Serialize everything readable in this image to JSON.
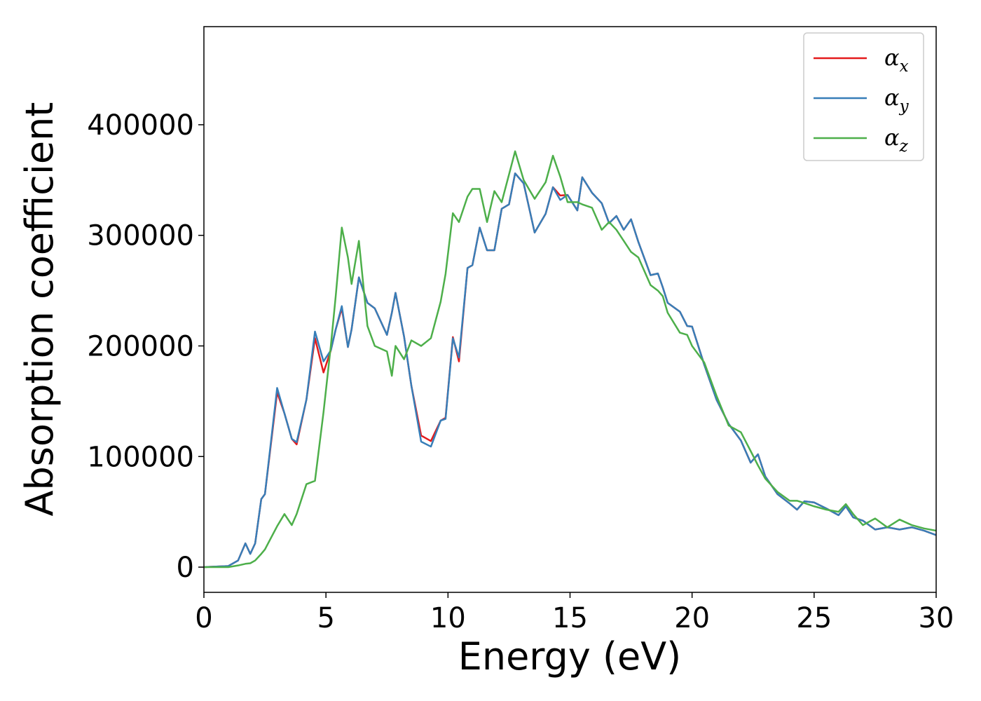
{
  "chart_data": {
    "type": "line",
    "xlabel": "Energy (eV)",
    "ylabel": "Absorption coefficient",
    "x": [
      0,
      1.0,
      1.4,
      1.7,
      1.9,
      2.1,
      2.35,
      2.5,
      3.0,
      3.3,
      3.6,
      3.8,
      4.2,
      4.55,
      4.9,
      5.2,
      5.4,
      5.65,
      5.9,
      6.05,
      6.35,
      6.7,
      7.0,
      7.5,
      7.7,
      7.85,
      8.2,
      8.5,
      8.9,
      9.3,
      9.7,
      9.9,
      10.2,
      10.45,
      10.8,
      11.0,
      11.3,
      11.6,
      11.9,
      12.2,
      12.5,
      12.75,
      13.1,
      13.55,
      14.0,
      14.3,
      14.6,
      14.9,
      15.3,
      15.5,
      15.9,
      16.3,
      16.6,
      16.9,
      17.2,
      17.5,
      17.8,
      18.3,
      18.6,
      18.8,
      19.0,
      19.5,
      19.8,
      20.0,
      20.5,
      21.0,
      21.5,
      22.0,
      22.4,
      22.7,
      23.0,
      23.5,
      24.0,
      24.3,
      24.6,
      25.0,
      25.5,
      26.0,
      26.3,
      26.6,
      27.0,
      27.5,
      28.0,
      28.5,
      29.0,
      29.5,
      30.0
    ],
    "series": [
      {
        "name": "α_x",
        "color": "#e41a1c",
        "values": [
          0,
          1000,
          6000,
          21500,
          12000,
          21500,
          61500,
          66000,
          158000,
          139000,
          116000,
          111000,
          151500,
          207000,
          176000,
          196000,
          215000,
          234000,
          199000,
          215000,
          262000,
          239000,
          234000,
          210000,
          230000,
          248000,
          208500,
          164000,
          119000,
          114000,
          132500,
          135000,
          208000,
          186000,
          270500,
          273000,
          307000,
          286500,
          286500,
          324000,
          328000,
          356000,
          347000,
          302500,
          319500,
          343500,
          336000,
          336500,
          322500,
          352500,
          338500,
          329000,
          311000,
          317500,
          305000,
          314500,
          294000,
          264000,
          265500,
          253000,
          239000,
          231000,
          218000,
          217500,
          183000,
          151500,
          129500,
          114500,
          94500,
          102000,
          82000,
          66000,
          57500,
          52000,
          59500,
          58500,
          53000,
          47000,
          55000,
          45000,
          42000,
          34000,
          36000,
          34000,
          36000,
          33000,
          29000
        ]
      },
      {
        "name": "α_y",
        "color": "#377eb8",
        "values": [
          0,
          1000,
          6000,
          21500,
          12000,
          21500,
          61500,
          66000,
          162000,
          139000,
          116000,
          113000,
          151500,
          213000,
          186000,
          196000,
          215000,
          236000,
          199000,
          215000,
          262000,
          239000,
          234000,
          210000,
          230000,
          248000,
          208500,
          164000,
          113500,
          109000,
          132500,
          134000,
          207000,
          189500,
          270500,
          273000,
          307000,
          286500,
          286500,
          324000,
          328000,
          356000,
          347000,
          302500,
          319500,
          343500,
          332000,
          336500,
          322500,
          352500,
          338500,
          329000,
          311000,
          317500,
          305000,
          314500,
          294000,
          264000,
          265500,
          253000,
          239000,
          231000,
          218000,
          217500,
          183000,
          151500,
          129500,
          114500,
          94500,
          102000,
          82000,
          66000,
          57500,
          52000,
          59500,
          58500,
          53000,
          47000,
          55000,
          45000,
          42000,
          34000,
          36000,
          34000,
          36000,
          33000,
          29000
        ]
      },
      {
        "name": "α_z",
        "color": "#4daf4a",
        "values": [
          0,
          0,
          1500,
          3000,
          3500,
          6000,
          12000,
          16000,
          37000,
          48000,
          38000,
          48000,
          75000,
          78000,
          140000,
          200000,
          245000,
          307000,
          280000,
          256000,
          295000,
          218000,
          200000,
          195000,
          173000,
          200000,
          188000,
          205000,
          200000,
          207000,
          240000,
          265000,
          320000,
          312000,
          335000,
          342000,
          342000,
          312000,
          340000,
          330000,
          355000,
          376000,
          350000,
          333000,
          348000,
          372000,
          353000,
          330000,
          330000,
          328000,
          325000,
          305000,
          312000,
          305000,
          295000,
          285000,
          280000,
          255000,
          250000,
          245000,
          230000,
          212000,
          210000,
          200000,
          185000,
          155000,
          128000,
          122000,
          105000,
          92000,
          80000,
          68000,
          60000,
          60000,
          58000,
          55000,
          52000,
          50000,
          57000,
          48000,
          38000,
          44000,
          36000,
          43000,
          38000,
          35000,
          33000
        ]
      }
    ],
    "xlim": [
      0,
      30
    ],
    "xticks": [
      0,
      5,
      10,
      15,
      20,
      25,
      30
    ],
    "ylim": [
      -22800,
      488700
    ],
    "yticks": [
      0,
      100000,
      200000,
      300000,
      400000
    ],
    "legend": "upper right"
  }
}
